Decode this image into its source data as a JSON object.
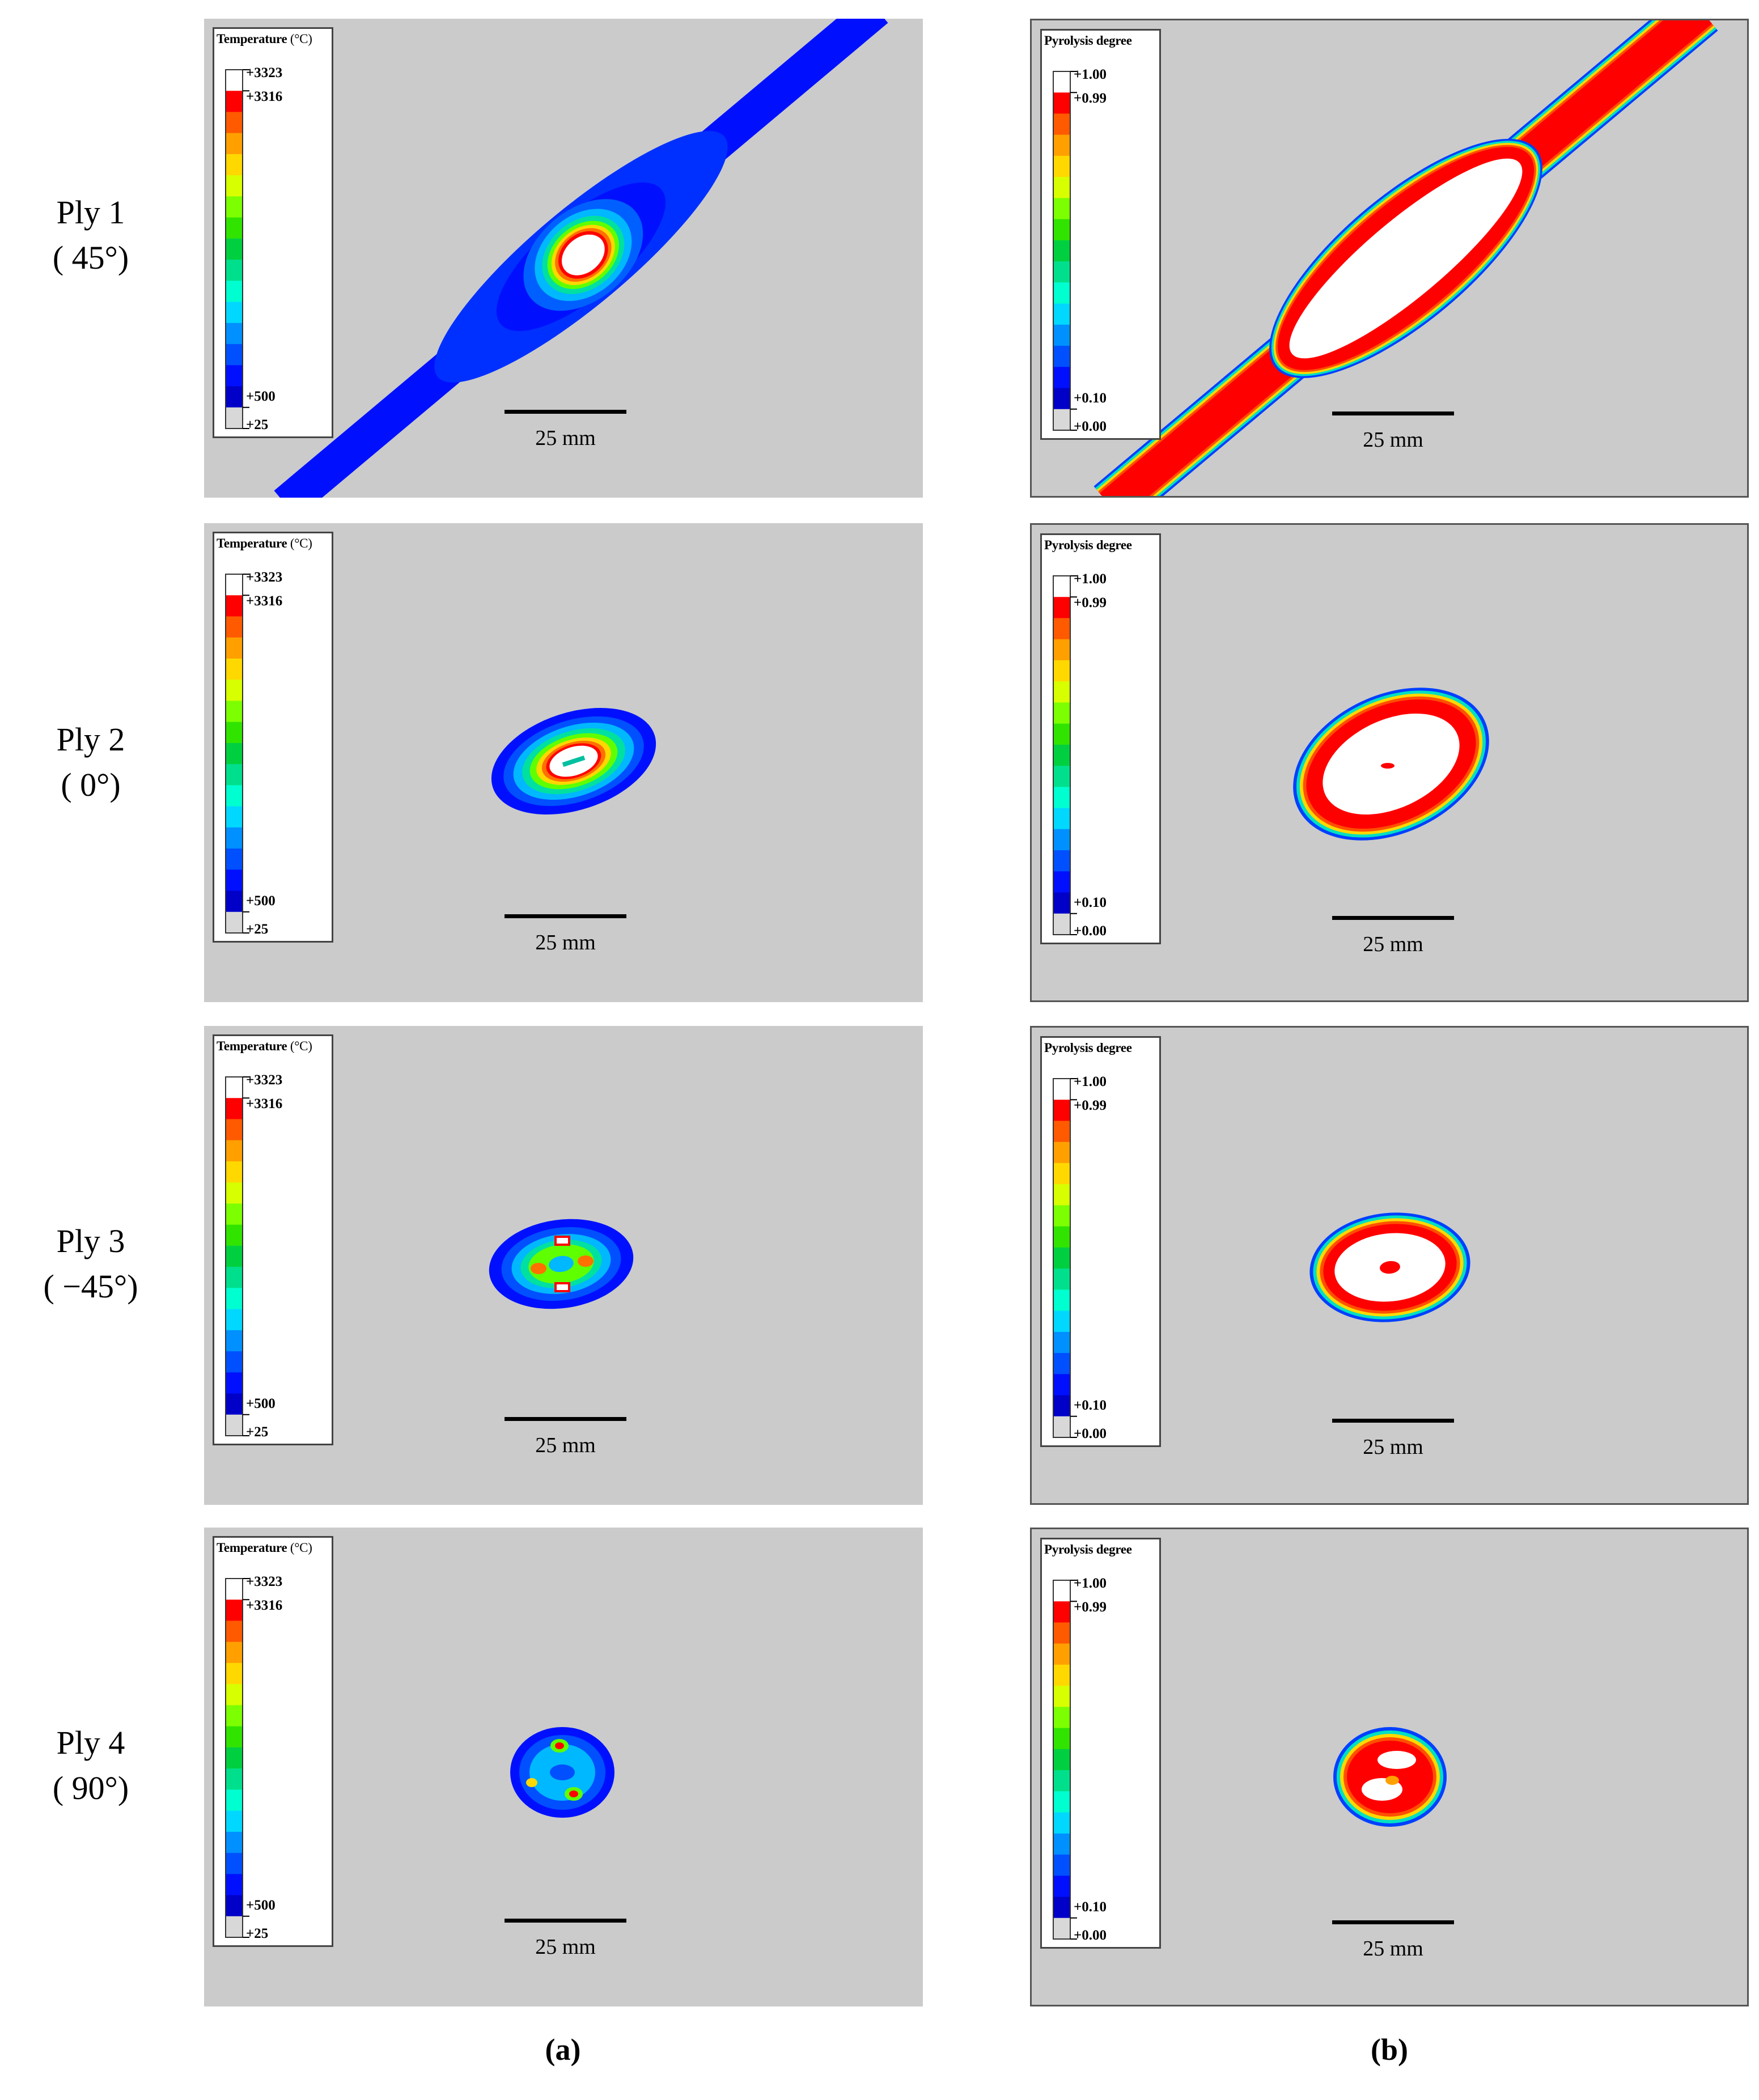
{
  "rows": [
    {
      "ply": "Ply 1",
      "angle": "( 45°)"
    },
    {
      "ply": "Ply 2",
      "angle": "( 0°)"
    },
    {
      "ply": "Ply 3",
      "angle": "( −45°)"
    },
    {
      "ply": "Ply 4",
      "angle": "( 90°)"
    }
  ],
  "temperature_legend": {
    "title": "Temperature",
    "unit": "(°C)",
    "ticks": [
      "+3323",
      "+3316",
      "+500",
      "+25"
    ]
  },
  "pyrolysis_legend": {
    "title": "Pyrolysis degree",
    "ticks": [
      "+1.00",
      "+0.99",
      "+0.10",
      "+0.00"
    ]
  },
  "scale_bar_label": "25 mm",
  "captions": {
    "a": "(a)",
    "b": "(b)"
  },
  "colors": {
    "background": "#cbcbcb",
    "contour_scale": [
      "#ffffff",
      "#ff0000",
      "#ff5a00",
      "#ffa000",
      "#ffd800",
      "#d8ff00",
      "#7cff00",
      "#30e400",
      "#00d040",
      "#00e08c",
      "#00ffd0",
      "#00d8ff",
      "#0090ff",
      "#0050ff",
      "#0010ff",
      "#0000c8",
      "#d8d8d8"
    ]
  }
}
